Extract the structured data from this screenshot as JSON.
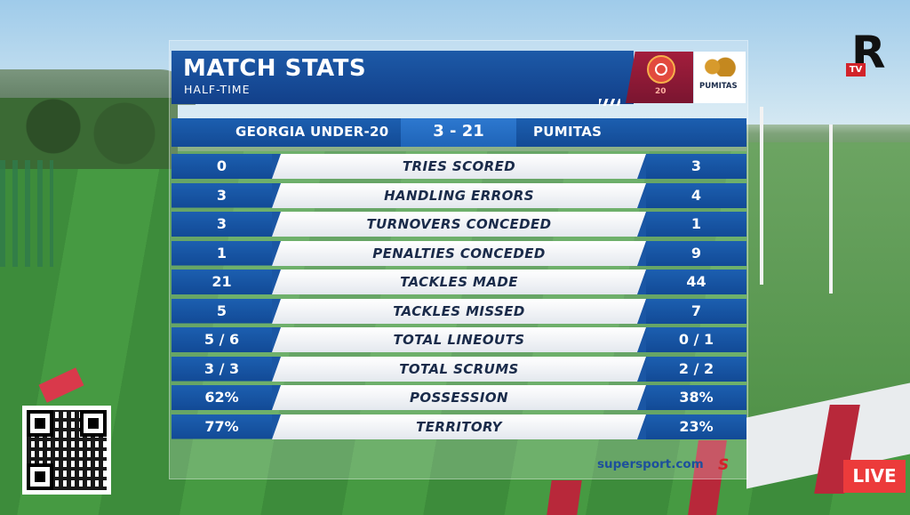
{
  "header": {
    "title": "MATCH STATS",
    "subtitle": "HALF-TIME"
  },
  "logos": {
    "georgia": "20",
    "pumitas": "PUMITAS"
  },
  "scoreboard": {
    "home_team": "GEORGIA UNDER-20",
    "score": "3 - 21",
    "away_team": "PUMITAS"
  },
  "stats": [
    {
      "label": "TRIES SCORED",
      "home": "0",
      "away": "3"
    },
    {
      "label": "HANDLING ERRORS",
      "home": "3",
      "away": "4"
    },
    {
      "label": "TURNOVERS CONCEDED",
      "home": "3",
      "away": "1"
    },
    {
      "label": "PENALTIES CONCEDED",
      "home": "1",
      "away": "9"
    },
    {
      "label": "TACKLES MADE",
      "home": "21",
      "away": "44"
    },
    {
      "label": "TACKLES MISSED",
      "home": "5",
      "away": "7"
    },
    {
      "label": "TOTAL LINEOUTS",
      "home": "5 / 6",
      "away": "0 / 1"
    },
    {
      "label": "TOTAL SCRUMS",
      "home": "3 / 3",
      "away": "2 / 2"
    },
    {
      "label": "POSSESSION",
      "home": "62%",
      "away": "38%"
    },
    {
      "label": "TERRITORY",
      "home": "77%",
      "away": "23%"
    }
  ],
  "broadcaster": {
    "text": "supersport.com",
    "mark": "S"
  },
  "channel": {
    "tag": "TV",
    "letter": "R"
  },
  "live_badge": "LIVE",
  "colors": {
    "primary_blue": "#1c5fb0",
    "live_red": "#ec3b3b",
    "georgia_red": "#a31e3c"
  }
}
